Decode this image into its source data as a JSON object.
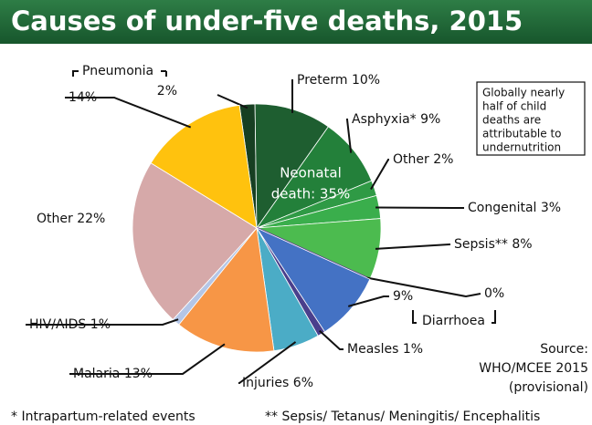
{
  "chart_data": {
    "type": "pie",
    "title": "Causes of under-five deaths, 2015",
    "categories": [
      null,
      "Preterm",
      "Asphyxia*",
      "Other",
      "Congenital",
      "Sepsis**",
      null,
      null,
      "Measles",
      "Injuries",
      "Malaria",
      "HIV/AIDS",
      "Other",
      null
    ],
    "values": [
      2,
      10,
      9,
      2,
      3,
      8,
      0,
      9,
      1,
      6,
      13,
      1,
      22,
      14
    ],
    "value_labels": [
      "2%",
      "10%",
      "9%",
      "2%",
      "3%",
      "8%",
      "0%",
      "9%",
      "1%",
      "6%",
      "13%",
      "1%",
      "22%",
      "14%"
    ],
    "colors": [
      "#173f22",
      "#1e5e30",
      "#23803a",
      "#2f9a45",
      "#3aae4c",
      "#4cbb4f",
      "#5e3f95",
      "#4472c4",
      "#4a3f8c",
      "#4bacc6",
      "#f79646",
      "#b4c6e7",
      "#d6a9a9",
      "#ffc20e"
    ],
    "group_labels": [
      "Pneumonia",
      "Diarrhoea"
    ],
    "neonatal_label": [
      "Neonatal",
      "death: 35%"
    ],
    "note": [
      "Globally nearly",
      "half of child",
      "deaths are",
      "attributable to",
      "undernutrition"
    ],
    "source": [
      "Source:",
      "WHO/MCEE 2015",
      "(provisional)"
    ],
    "footnotes": [
      "* Intrapartum-related events",
      "** Sepsis/ Tetanus/ Meningitis/ Encephalitis"
    ]
  }
}
